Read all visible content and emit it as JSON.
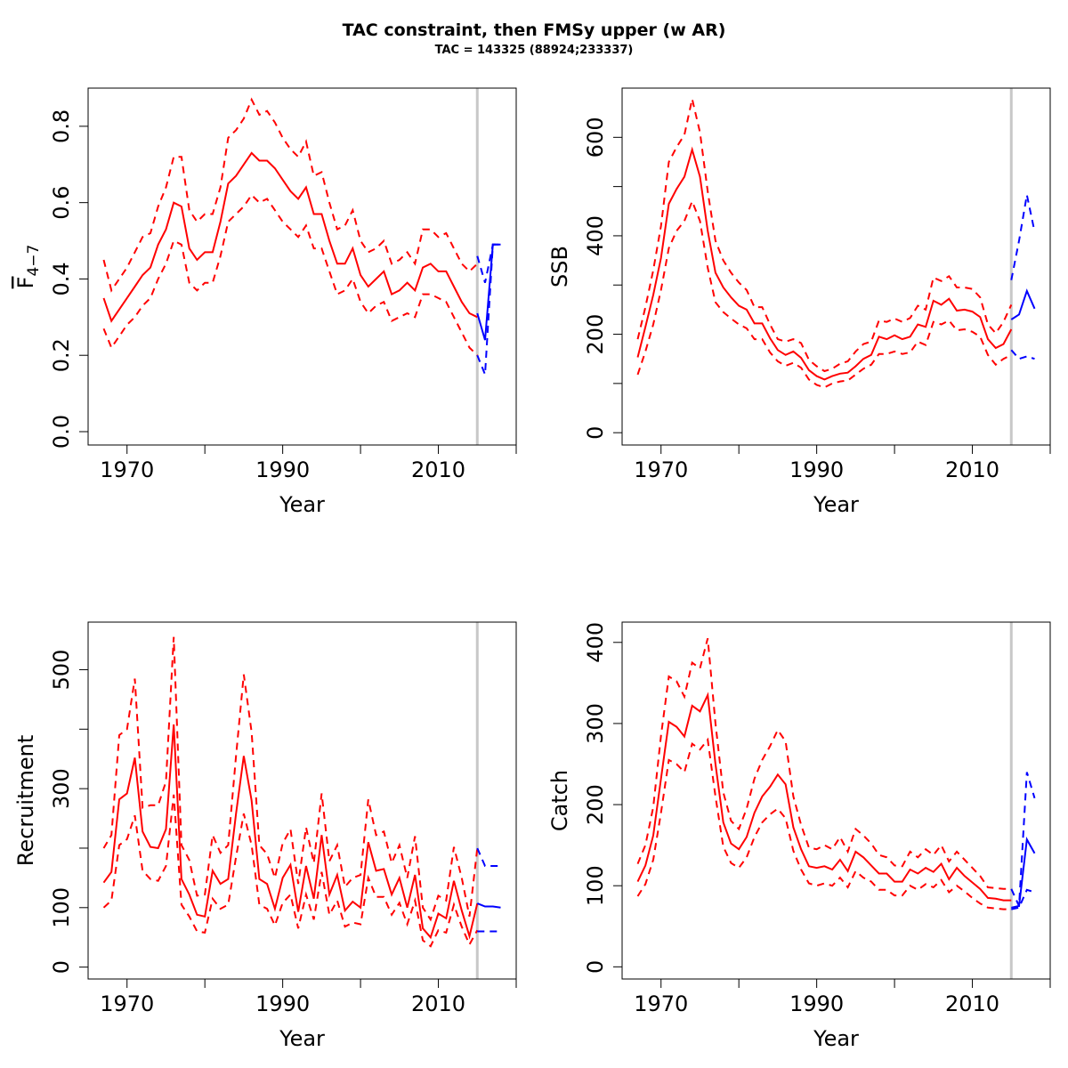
{
  "title": "TAC constraint, then FMSy upper (w AR)",
  "subtitle": "TAC = 143325 (88924;233337)",
  "colors": {
    "historical": "#ff0000",
    "projection": "#0000ff",
    "reference_line": "#c8c8c8"
  },
  "chart_data": [
    {
      "type": "line",
      "id": "fbar",
      "title": "",
      "xlabel": "Year",
      "ylabel": "F̄",
      "ylabel_sub": "4−7",
      "xlim": [
        1965,
        2020
      ],
      "ylim": [
        -0.035,
        0.9
      ],
      "xticks": [
        1970,
        1980,
        1990,
        2000,
        2010,
        2020
      ],
      "xtick_labels": [
        "1970",
        "",
        "1990",
        "",
        "2010",
        ""
      ],
      "yticks": [
        0.0,
        0.2,
        0.4,
        0.6,
        0.8
      ],
      "ytick_labels": [
        "0.0",
        "0.2",
        "0.4",
        "0.6",
        "0.8"
      ],
      "reference_year": 2015,
      "historical": {
        "years": [
          1967,
          1968,
          1969,
          1970,
          1971,
          1972,
          1973,
          1974,
          1975,
          1976,
          1977,
          1978,
          1979,
          1980,
          1981,
          1982,
          1983,
          1984,
          1985,
          1986,
          1987,
          1988,
          1989,
          1990,
          1991,
          1992,
          1993,
          1994,
          1995,
          1996,
          1997,
          1998,
          1999,
          2000,
          2001,
          2002,
          2003,
          2004,
          2005,
          2006,
          2007,
          2008,
          2009,
          2010,
          2011,
          2012,
          2013,
          2014,
          2015
        ],
        "mean": [
          0.35,
          0.29,
          0.32,
          0.35,
          0.38,
          0.41,
          0.43,
          0.49,
          0.53,
          0.6,
          0.59,
          0.48,
          0.45,
          0.47,
          0.47,
          0.55,
          0.65,
          0.67,
          0.7,
          0.73,
          0.71,
          0.71,
          0.69,
          0.66,
          0.63,
          0.61,
          0.64,
          0.57,
          0.57,
          0.5,
          0.44,
          0.44,
          0.48,
          0.41,
          0.38,
          0.4,
          0.42,
          0.36,
          0.37,
          0.39,
          0.37,
          0.43,
          0.44,
          0.42,
          0.42,
          0.38,
          0.34,
          0.31,
          0.3
        ],
        "upper": [
          0.45,
          0.37,
          0.4,
          0.43,
          0.47,
          0.51,
          0.52,
          0.59,
          0.64,
          0.72,
          0.72,
          0.58,
          0.55,
          0.57,
          0.57,
          0.64,
          0.77,
          0.79,
          0.82,
          0.87,
          0.83,
          0.84,
          0.81,
          0.77,
          0.74,
          0.72,
          0.76,
          0.67,
          0.68,
          0.6,
          0.53,
          0.54,
          0.58,
          0.5,
          0.47,
          0.48,
          0.5,
          0.44,
          0.45,
          0.47,
          0.44,
          0.53,
          0.53,
          0.51,
          0.52,
          0.48,
          0.44,
          0.42,
          0.44
        ],
        "lower": [
          0.27,
          0.22,
          0.25,
          0.28,
          0.3,
          0.33,
          0.35,
          0.4,
          0.44,
          0.5,
          0.49,
          0.39,
          0.37,
          0.39,
          0.39,
          0.46,
          0.55,
          0.57,
          0.59,
          0.62,
          0.6,
          0.61,
          0.58,
          0.55,
          0.53,
          0.51,
          0.54,
          0.48,
          0.48,
          0.42,
          0.36,
          0.37,
          0.4,
          0.34,
          0.31,
          0.33,
          0.34,
          0.29,
          0.3,
          0.31,
          0.3,
          0.36,
          0.36,
          0.35,
          0.34,
          0.3,
          0.26,
          0.22,
          0.2
        ]
      },
      "projection": {
        "years": [
          2015,
          2016,
          2017,
          2018
        ],
        "mean": [
          0.31,
          0.24,
          0.49,
          0.49
        ],
        "upper": [
          0.46,
          0.39,
          0.49,
          0.49
        ],
        "lower": [
          0.2,
          0.15,
          0.49,
          0.49
        ]
      }
    },
    {
      "type": "line",
      "id": "ssb",
      "title": "",
      "xlabel": "Year",
      "ylabel": "SSB",
      "xlim": [
        1965,
        2020
      ],
      "ylim": [
        -25,
        700
      ],
      "xticks": [
        1970,
        1980,
        1990,
        2000,
        2010,
        2020
      ],
      "xtick_labels": [
        "1970",
        "",
        "1990",
        "",
        "2010",
        ""
      ],
      "yticks": [
        0,
        100,
        200,
        300,
        400,
        500,
        600
      ],
      "ytick_labels": [
        "0",
        "",
        "200",
        "",
        "400",
        "",
        "600"
      ],
      "reference_year": 2015,
      "historical": {
        "years": [
          1967,
          1968,
          1969,
          1970,
          1971,
          1972,
          1973,
          1974,
          1975,
          1976,
          1977,
          1978,
          1979,
          1980,
          1981,
          1982,
          1983,
          1984,
          1985,
          1986,
          1987,
          1988,
          1989,
          1990,
          1991,
          1992,
          1993,
          1994,
          1995,
          1996,
          1997,
          1998,
          1999,
          2000,
          2001,
          2002,
          2003,
          2004,
          2005,
          2006,
          2007,
          2008,
          2009,
          2010,
          2011,
          2012,
          2013,
          2014,
          2015
        ],
        "mean": [
          153,
          215,
          280,
          355,
          465,
          495,
          520,
          575,
          520,
          410,
          325,
          295,
          275,
          258,
          250,
          222,
          222,
          192,
          168,
          158,
          165,
          152,
          127,
          115,
          108,
          115,
          120,
          122,
          135,
          150,
          158,
          195,
          190,
          198,
          190,
          195,
          220,
          215,
          268,
          260,
          272,
          248,
          250,
          246,
          235,
          190,
          172,
          180,
          210
        ],
        "upper": [
          190,
          255,
          330,
          420,
          550,
          580,
          605,
          678,
          610,
          490,
          390,
          350,
          325,
          305,
          290,
          255,
          255,
          220,
          190,
          185,
          190,
          182,
          148,
          135,
          125,
          130,
          140,
          145,
          165,
          180,
          185,
          228,
          225,
          232,
          225,
          233,
          258,
          250,
          315,
          308,
          318,
          295,
          295,
          292,
          275,
          220,
          202,
          225,
          260
        ],
        "lower": [
          118,
          165,
          220,
          290,
          375,
          410,
          430,
          470,
          430,
          335,
          265,
          245,
          232,
          220,
          212,
          190,
          190,
          163,
          145,
          136,
          142,
          132,
          108,
          97,
          92,
          100,
          104,
          106,
          118,
          130,
          138,
          160,
          160,
          165,
          160,
          163,
          185,
          178,
          225,
          220,
          228,
          208,
          210,
          205,
          195,
          158,
          138,
          150,
          158
        ]
      },
      "projection": {
        "years": [
          2015,
          2016,
          2017,
          2018
        ],
        "mean": [
          230,
          240,
          288,
          252
        ],
        "upper": [
          310,
          390,
          483,
          408
        ],
        "lower": [
          168,
          150,
          155,
          150
        ]
      }
    },
    {
      "type": "line",
      "id": "recruitment",
      "title": "",
      "xlabel": "Year",
      "ylabel": "Recruitment",
      "xlim": [
        1965,
        2020
      ],
      "ylim": [
        -20,
        580
      ],
      "xticks": [
        1970,
        1980,
        1990,
        2000,
        2010,
        2020
      ],
      "xtick_labels": [
        "1970",
        "",
        "1990",
        "",
        "2010",
        ""
      ],
      "yticks": [
        0,
        100,
        200,
        300,
        400,
        500
      ],
      "ytick_labels": [
        "0",
        "100",
        "",
        "300",
        "",
        "500"
      ],
      "reference_year": 2015,
      "historical": {
        "years": [
          1967,
          1968,
          1969,
          1970,
          1971,
          1972,
          1973,
          1974,
          1975,
          1976,
          1977,
          1978,
          1979,
          1980,
          1981,
          1982,
          1983,
          1984,
          1985,
          1986,
          1987,
          1988,
          1989,
          1990,
          1991,
          1992,
          1993,
          1994,
          1995,
          1996,
          1997,
          1998,
          1999,
          2000,
          2001,
          2002,
          2003,
          2004,
          2005,
          2006,
          2007,
          2008,
          2009,
          2010,
          2011,
          2012,
          2013,
          2014,
          2015
        ],
        "mean": [
          142,
          160,
          282,
          292,
          352,
          228,
          202,
          200,
          232,
          408,
          148,
          122,
          88,
          85,
          162,
          140,
          148,
          258,
          355,
          280,
          148,
          140,
          98,
          150,
          172,
          93,
          170,
          115,
          222,
          122,
          155,
          95,
          110,
          100,
          210,
          162,
          165,
          122,
          150,
          100,
          155,
          65,
          50,
          90,
          82,
          145,
          95,
          52,
          107
        ],
        "upper": [
          200,
          222,
          390,
          400,
          485,
          268,
          272,
          272,
          312,
          555,
          205,
          180,
          120,
          122,
          222,
          192,
          205,
          355,
          492,
          395,
          205,
          190,
          150,
          208,
          232,
          140,
          235,
          175,
          292,
          178,
          205,
          135,
          150,
          155,
          282,
          222,
          228,
          175,
          205,
          150,
          220,
          100,
          80,
          120,
          112,
          202,
          150,
          85,
          200
        ],
        "lower": [
          100,
          112,
          205,
          215,
          255,
          162,
          148,
          145,
          170,
          290,
          105,
          85,
          60,
          58,
          115,
          98,
          105,
          185,
          258,
          205,
          105,
          98,
          70,
          108,
          122,
          65,
          122,
          80,
          160,
          88,
          112,
          68,
          75,
          72,
          150,
          118,
          118,
          88,
          108,
          72,
          112,
          45,
          35,
          62,
          58,
          105,
          68,
          38,
          62
        ]
      },
      "projection": {
        "years": [
          2015,
          2016,
          2017,
          2018
        ],
        "mean": [
          107,
          102,
          102,
          100
        ],
        "upper": [
          200,
          170,
          170,
          170
        ],
        "lower": [
          60,
          60,
          60,
          60
        ]
      }
    },
    {
      "type": "line",
      "id": "catch",
      "title": "",
      "xlabel": "Year",
      "ylabel": "Catch",
      "xlim": [
        1965,
        2020
      ],
      "ylim": [
        -15,
        425
      ],
      "xticks": [
        1970,
        1980,
        1990,
        2000,
        2010,
        2020
      ],
      "xtick_labels": [
        "1970",
        "",
        "1990",
        "",
        "2010",
        ""
      ],
      "yticks": [
        0,
        100,
        200,
        300,
        400
      ],
      "ytick_labels": [
        "0",
        "100",
        "200",
        "300",
        "400"
      ],
      "reference_year": 2015,
      "historical": {
        "years": [
          1967,
          1968,
          1969,
          1970,
          1971,
          1972,
          1973,
          1974,
          1975,
          1976,
          1977,
          1978,
          1979,
          1980,
          1981,
          1982,
          1983,
          1984,
          1985,
          1986,
          1987,
          1988,
          1989,
          1990,
          1991,
          1992,
          1993,
          1994,
          1995,
          1996,
          1997,
          1998,
          1999,
          2000,
          2001,
          2002,
          2003,
          2004,
          2005,
          2006,
          2007,
          2008,
          2009,
          2010,
          2011,
          2012,
          2013,
          2014,
          2015
        ],
        "mean": [
          105,
          125,
          162,
          232,
          302,
          296,
          284,
          322,
          315,
          335,
          250,
          178,
          152,
          145,
          160,
          190,
          210,
          222,
          237,
          225,
          172,
          145,
          124,
          122,
          124,
          120,
          132,
          118,
          142,
          135,
          125,
          115,
          115,
          105,
          105,
          120,
          115,
          122,
          117,
          127,
          108,
          122,
          112,
          104,
          96,
          85,
          84,
          82,
          82
        ],
        "upper": [
          127,
          150,
          197,
          285,
          358,
          352,
          333,
          375,
          368,
          405,
          300,
          215,
          180,
          170,
          195,
          232,
          255,
          272,
          292,
          278,
          210,
          175,
          147,
          145,
          150,
          145,
          160,
          142,
          170,
          162,
          152,
          138,
          135,
          125,
          124,
          142,
          135,
          145,
          138,
          150,
          130,
          142,
          132,
          122,
          112,
          98,
          97,
          96,
          96
        ],
        "lower": [
          87,
          102,
          132,
          190,
          255,
          250,
          240,
          275,
          268,
          280,
          210,
          148,
          128,
          122,
          135,
          160,
          178,
          188,
          195,
          183,
          143,
          120,
          103,
          100,
          103,
          100,
          110,
          98,
          118,
          110,
          105,
          95,
          95,
          88,
          88,
          100,
          95,
          102,
          98,
          107,
          92,
          100,
          93,
          85,
          78,
          73,
          72,
          71,
          71
        ]
      },
      "projection": {
        "years": [
          2015,
          2016,
          2017,
          2018
        ],
        "mean": [
          73,
          75,
          157,
          140
        ],
        "upper": [
          96,
          75,
          240,
          208
        ],
        "lower": [
          71,
          73,
          95,
          92
        ]
      }
    }
  ]
}
